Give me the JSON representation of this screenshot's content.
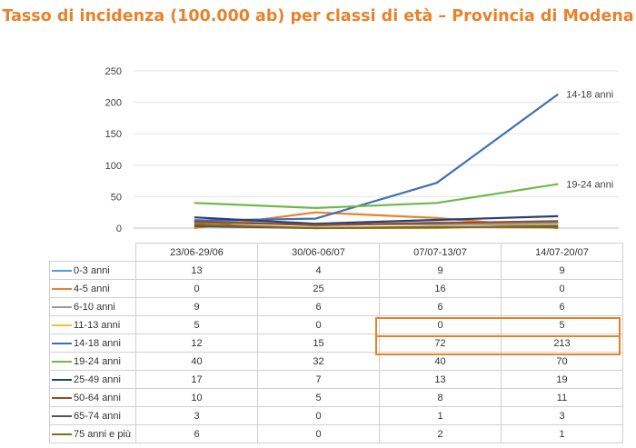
{
  "title": "Tasso di incidenza (100.000 ab) per classi di età – Provincia di Modena",
  "chart_data": {
    "type": "line",
    "title": "Tasso di incidenza (100.000 ab) per classi di età – Provincia di Modena",
    "categories": [
      "23/06-29/06",
      "30/06-06/07",
      "07/07-13/07",
      "14/07-20/07"
    ],
    "yticks": [
      "0",
      "50",
      "100",
      "150",
      "200",
      "250"
    ],
    "ylim": [
      0,
      250
    ],
    "grid": true,
    "legend": "data table below chart",
    "series": [
      {
        "name": "0-3 anni",
        "color": "#4aa3d8",
        "values": [
          13,
          4,
          9,
          9
        ]
      },
      {
        "name": "4-5 anni",
        "color": "#e8822a",
        "values": [
          0,
          25,
          16,
          0
        ]
      },
      {
        "name": "6-10 anni",
        "color": "#9a9a9a",
        "values": [
          9,
          6,
          6,
          6
        ]
      },
      {
        "name": "11-13 anni",
        "color": "#f5c12b",
        "values": [
          5,
          0,
          0,
          5
        ]
      },
      {
        "name": "14-18 anni",
        "color": "#3e6fb5",
        "values": [
          12,
          15,
          72,
          213
        ]
      },
      {
        "name": "19-24 anni",
        "color": "#70b84a",
        "values": [
          40,
          32,
          40,
          70
        ]
      },
      {
        "name": "25-49 anni",
        "color": "#23407a",
        "values": [
          17,
          7,
          13,
          19
        ]
      },
      {
        "name": "50-64 anni",
        "color": "#9c4a1e",
        "values": [
          10,
          5,
          8,
          11
        ]
      },
      {
        "name": "65-74 anni",
        "color": "#555555",
        "values": [
          3,
          0,
          1,
          3
        ]
      },
      {
        "name": "75 anni e più",
        "color": "#8a6a16",
        "values": [
          6,
          0,
          2,
          1
        ]
      }
    ],
    "annotations": [
      {
        "text": "14-18 anni",
        "series": "14-18 anni"
      },
      {
        "text": "19-24 anni",
        "series": "19-24 anni"
      }
    ]
  }
}
